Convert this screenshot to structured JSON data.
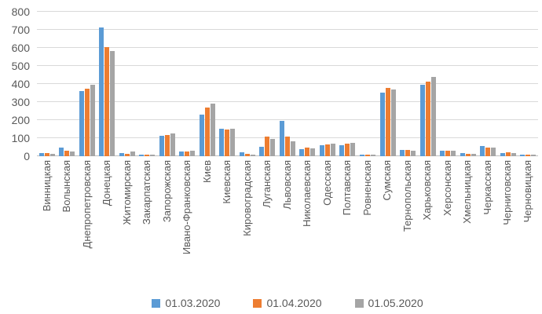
{
  "chart_data": {
    "type": "bar",
    "xlabel": "",
    "ylabel": "",
    "ylim": [
      0,
      800
    ],
    "yticks": [
      0,
      100,
      200,
      300,
      400,
      500,
      600,
      700,
      800
    ],
    "grid": "horizontal",
    "legend_position": "bottom",
    "categories": [
      "Винницкая",
      "Волынская",
      "Днепропетровская",
      "Донецкая",
      "Житомирская",
      "Закарпатская",
      "Запорожская",
      "Ивано-Франковская",
      "Киев",
      "Киевская",
      "Кировоградская",
      "Луганская",
      "Львовская",
      "Николаевская",
      "Одесская",
      "Полтавская",
      "Ровненская",
      "Сумская",
      "Тернопольская",
      "Харьковская",
      "Херсонская",
      "Хмельницкая",
      "Черкасская",
      "Черниговская",
      "Черновицкая"
    ],
    "series": [
      {
        "name": "01.03.2020",
        "color": "#5B9BD5",
        "values": [
          17,
          49,
          360,
          713,
          17,
          8,
          112,
          27,
          232,
          154,
          20,
          54,
          196,
          41,
          59,
          61,
          9,
          354,
          35,
          394,
          29,
          16,
          55,
          19,
          10
        ]
      },
      {
        "name": "01.04.2020",
        "color": "#ED7D31",
        "values": [
          18,
          32,
          375,
          604,
          14,
          8,
          117,
          24,
          271,
          150,
          13,
          110,
          110,
          46,
          66,
          70,
          8,
          377,
          35,
          413,
          32,
          15,
          49,
          22,
          9
        ]
      },
      {
        "name": "01.05.2020",
        "color": "#A5A5A5",
        "values": [
          15,
          26,
          394,
          583,
          25,
          7,
          124,
          32,
          291,
          154,
          10,
          96,
          83,
          45,
          71,
          72,
          8,
          370,
          32,
          438,
          32,
          13,
          47,
          19,
          7
        ]
      }
    ]
  },
  "colors": {
    "background": "#FFFFFF",
    "gridline": "#D9D9D9",
    "axis_text": "#595959"
  }
}
